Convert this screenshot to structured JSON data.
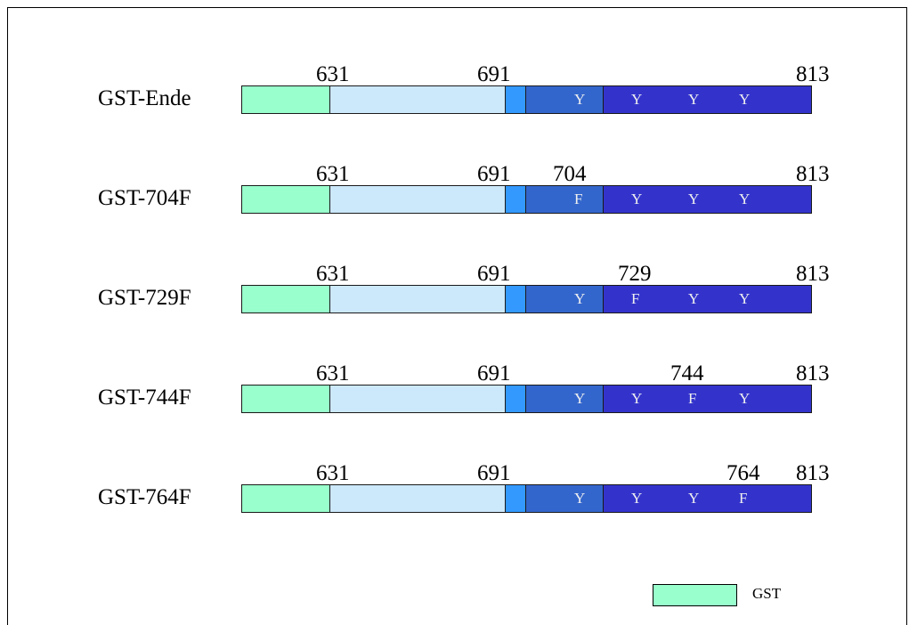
{
  "colors": {
    "gst": "#99ffcc",
    "light": "#cce8fb",
    "mid": "#3399ff",
    "darkmid": "#3366cc",
    "dark": "#3333cc"
  },
  "constructs": [
    {
      "name": "GST-Ende",
      "ticks": [
        "631",
        "691",
        "813"
      ],
      "mutation_label": "",
      "sites": [
        "Y",
        "Y",
        "Y",
        "Y"
      ]
    },
    {
      "name": "GST-704F",
      "ticks": [
        "631",
        "691",
        "813"
      ],
      "mutation_label": "704",
      "sites": [
        "F",
        "Y",
        "Y",
        "Y"
      ]
    },
    {
      "name": "GST-729F",
      "ticks": [
        "631",
        "691",
        "813"
      ],
      "mutation_label": "729",
      "sites": [
        "Y",
        "F",
        "Y",
        "Y"
      ]
    },
    {
      "name": "GST-744F",
      "ticks": [
        "631",
        "691",
        "813"
      ],
      "mutation_label": "744",
      "sites": [
        "Y",
        "Y",
        "F",
        "Y"
      ]
    },
    {
      "name": "GST-764F",
      "ticks": [
        "631",
        "691",
        "813"
      ],
      "mutation_label": "764",
      "sites": [
        "Y",
        "Y",
        "Y",
        "F"
      ]
    }
  ],
  "legend": {
    "label": "GST"
  }
}
